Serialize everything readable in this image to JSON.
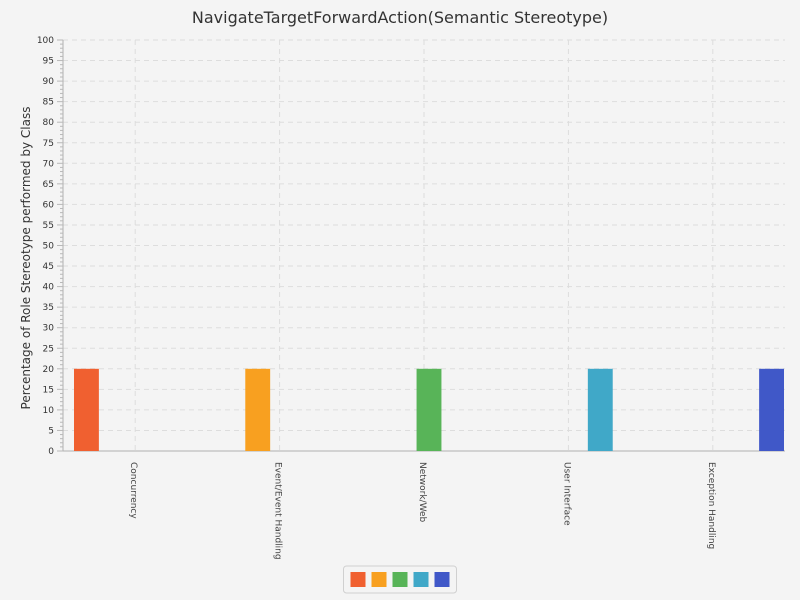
{
  "chart_data": {
    "type": "bar",
    "title": "NavigateTargetForwardAction(Semantic Stereotype)",
    "xlabel": "",
    "ylabel": "Percentage of Role Stereotype performed by Class",
    "ylim": [
      0,
      100
    ],
    "ytick_step": 5,
    "grid": true,
    "legend_position": "bottom",
    "categories": [
      "Concurrency",
      "Event/Event Handling",
      "Network/Web",
      "User Interface",
      "Exception Handling"
    ],
    "series": [
      {
        "color": "#f06030",
        "values": [
          20,
          0,
          0,
          0,
          0
        ]
      },
      {
        "color": "#f8a020",
        "values": [
          0,
          20,
          0,
          0,
          0
        ]
      },
      {
        "color": "#58b458",
        "values": [
          0,
          0,
          20,
          0,
          0
        ]
      },
      {
        "color": "#40a8c8",
        "values": [
          0,
          0,
          0,
          20,
          0
        ]
      },
      {
        "color": "#4058c8",
        "values": [
          0,
          0,
          0,
          0,
          20
        ]
      }
    ]
  }
}
